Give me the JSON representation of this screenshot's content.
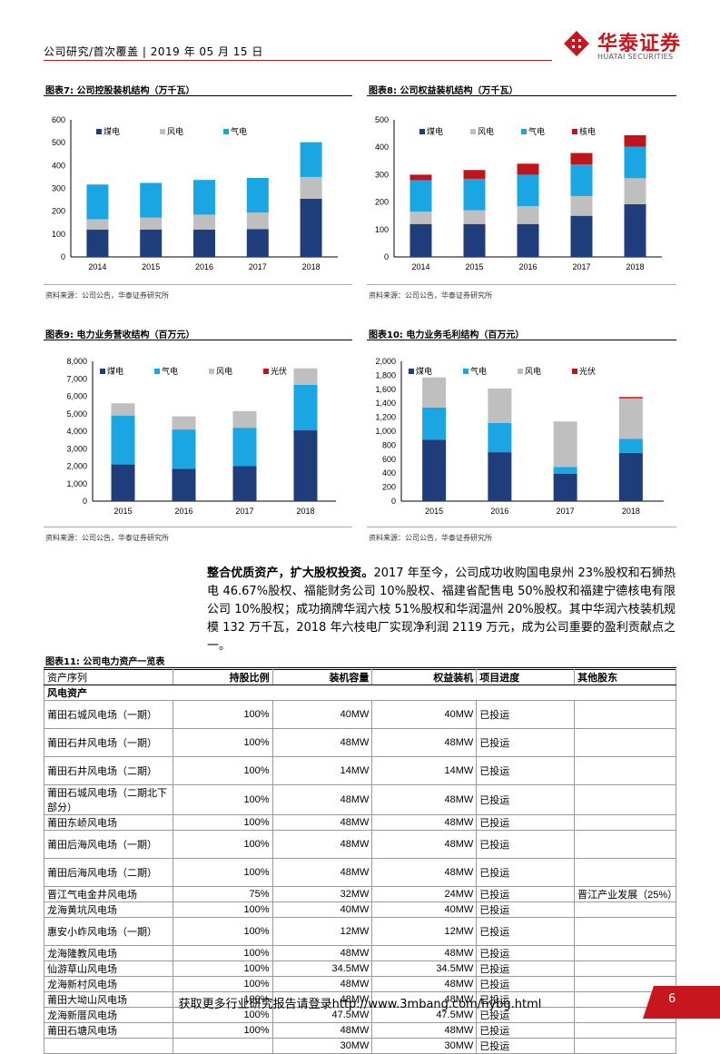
{
  "header": {
    "text": "公司研究/首次覆盖 | 2019 年 05 月 15 日",
    "brand_cn": "华泰证券",
    "brand_en": "HUATAI SECURITIES"
  },
  "colors": {
    "coal": "#1f3d7a",
    "wind": "#bfbfbf",
    "gas": "#1aa6e3",
    "nuclear": "#c0141c",
    "pv": "#c0141c",
    "brand": "#c8161e"
  },
  "charts": [
    {
      "title": "图表7:  公司控股装机结构（万千瓦）",
      "source": "资料来源：公司公告，华泰证券研究所"
    },
    {
      "title": "图表8:  公司权益装机结构（万千瓦）",
      "source": "资料来源：公司公告，华泰证券研究所"
    },
    {
      "title": "图表9:  电力业务营收结构（百万元）",
      "source": "资料来源：公司公告，华泰证券研究所"
    },
    {
      "title": "图表10:  电力业务毛利结构（百万元）",
      "source": "资料来源：公司公告，华泰证券研究所"
    }
  ],
  "chart_data": [
    {
      "type": "bar",
      "stacked": true,
      "categories": [
        "2014",
        "2015",
        "2016",
        "2017",
        "2018"
      ],
      "series": [
        {
          "name": "煤电",
          "values": [
            120,
            120,
            120,
            122,
            255
          ]
        },
        {
          "name": "风电",
          "values": [
            45,
            52,
            65,
            72,
            95
          ]
        },
        {
          "name": "气电",
          "values": [
            152,
            152,
            152,
            152,
            152
          ]
        }
      ],
      "ylim": [
        0,
        600
      ],
      "yticks": [
        0,
        100,
        200,
        300,
        400,
        500,
        600
      ],
      "legend": "top"
    },
    {
      "type": "bar",
      "stacked": true,
      "categories": [
        "2014",
        "2015",
        "2016",
        "2017",
        "2018"
      ],
      "series": [
        {
          "name": "煤电",
          "values": [
            120,
            120,
            120,
            150,
            192
          ]
        },
        {
          "name": "风电",
          "values": [
            45,
            50,
            65,
            72,
            95
          ]
        },
        {
          "name": "气电",
          "values": [
            115,
            115,
            115,
            115,
            115
          ]
        },
        {
          "name": "核电",
          "values": [
            20,
            32,
            40,
            42,
            42
          ]
        }
      ],
      "ylim": [
        0,
        500
      ],
      "yticks": [
        0,
        100,
        200,
        300,
        400,
        500
      ],
      "legend": "top"
    },
    {
      "type": "bar",
      "stacked": true,
      "categories": [
        "2015",
        "2016",
        "2017",
        "2018"
      ],
      "series": [
        {
          "name": "煤电",
          "values": [
            2100,
            1850,
            2000,
            4050
          ]
        },
        {
          "name": "气电",
          "values": [
            2800,
            2250,
            2200,
            2600
          ]
        },
        {
          "name": "风电",
          "values": [
            700,
            750,
            950,
            950
          ]
        },
        {
          "name": "光伏",
          "values": [
            0,
            0,
            0,
            0
          ]
        }
      ],
      "ylim": [
        0,
        8000
      ],
      "yticks": [
        0,
        1000,
        2000,
        3000,
        4000,
        5000,
        6000,
        7000,
        8000
      ],
      "legend": "top"
    },
    {
      "type": "bar",
      "stacked": true,
      "categories": [
        "2015",
        "2016",
        "2017",
        "2018"
      ],
      "series": [
        {
          "name": "煤电",
          "values": [
            880,
            700,
            390,
            690
          ]
        },
        {
          "name": "气电",
          "values": [
            460,
            420,
            100,
            200
          ]
        },
        {
          "name": "风电",
          "values": [
            430,
            490,
            650,
            580
          ]
        },
        {
          "name": "光伏",
          "values": [
            0,
            0,
            0,
            20
          ]
        }
      ],
      "ylim": [
        0,
        2000
      ],
      "yticks": [
        0,
        200,
        400,
        600,
        800,
        1000,
        1200,
        1400,
        1600,
        1800,
        2000
      ],
      "legend": "top"
    }
  ],
  "paragraph": {
    "lead": "整合优质资产，扩大股权投资。",
    "body": "2017 年至今，公司成功收购国电泉州 23%股权和石狮热电 46.67%股权、福能财务公司 10%股权、福建省配售电 50%股权和福建宁德核电有限公司 10%股权；成功摘牌华润六枝 51%股权和华润温州 20%股权。其中华润六枝装机规模 132 万千瓦，2018 年六枝电厂实现净利润 2119 万元，成为公司重要的盈利贡献点之一。"
  },
  "table": {
    "title": "图表11:  公司电力资产一览表",
    "columns": [
      "资产序列",
      "持股比例",
      "装机容量",
      "权益装机",
      "项目进度",
      "其他股东"
    ],
    "section": "风电资产",
    "rows": [
      [
        "莆田石城风电场（一期）",
        "100%",
        "40MW",
        "40MW",
        "已投运",
        ""
      ],
      [
        "莆田石井风电场（一期）",
        "100%",
        "48MW",
        "48MW",
        "已投运",
        ""
      ],
      [
        "莆田石井风电场（二期）",
        "100%",
        "14MW",
        "14MW",
        "已投运",
        ""
      ],
      [
        "莆田石城风电场（二期北下部分）",
        "100%",
        "48MW",
        "48MW",
        "已投运",
        ""
      ],
      [
        "莆田东峤风电场",
        "100%",
        "48MW",
        "48MW",
        "已投运",
        ""
      ],
      [
        "莆田后海风电场（一期）",
        "100%",
        "48MW",
        "48MW",
        "已投运",
        ""
      ],
      [
        "莆田后海风电场（二期）",
        "100%",
        "48MW",
        "48MW",
        "已投运",
        ""
      ],
      [
        "晋江气电金井风电场",
        "75%",
        "32MW",
        "24MW",
        "已投运",
        "晋江产业发展（25%）"
      ],
      [
        "龙海黄坑风电场",
        "100%",
        "40MW",
        "40MW",
        "已投运",
        ""
      ],
      [
        "惠安小岞风电场（一期）",
        "100%",
        "12MW",
        "12MW",
        "已投运",
        ""
      ],
      [
        "龙海隆教风电场",
        "100%",
        "48MW",
        "48MW",
        "已投运",
        ""
      ],
      [
        "仙游草山风电场",
        "100%",
        "34.5MW",
        "34.5MW",
        "已投运",
        ""
      ],
      [
        "龙海新村风电场",
        "100%",
        "48MW",
        "48MW",
        "已投运",
        ""
      ],
      [
        "莆田大坳山风电场",
        "100%",
        "48MW",
        "48MW",
        "已投运",
        ""
      ],
      [
        "龙海新厝风电场",
        "100%",
        "47.5MW",
        "47.5MW",
        "已投运",
        ""
      ],
      [
        "莆田石塘风电场",
        "100%",
        "48MW",
        "48MW",
        "已投运",
        ""
      ],
      [
        "",
        "",
        "30MW",
        "30MW",
        "已投运",
        ""
      ]
    ]
  },
  "footer": {
    "text": "获取更多行业研究报告请登录http://www.3mbang.com/hybg.html",
    "page": "6"
  }
}
